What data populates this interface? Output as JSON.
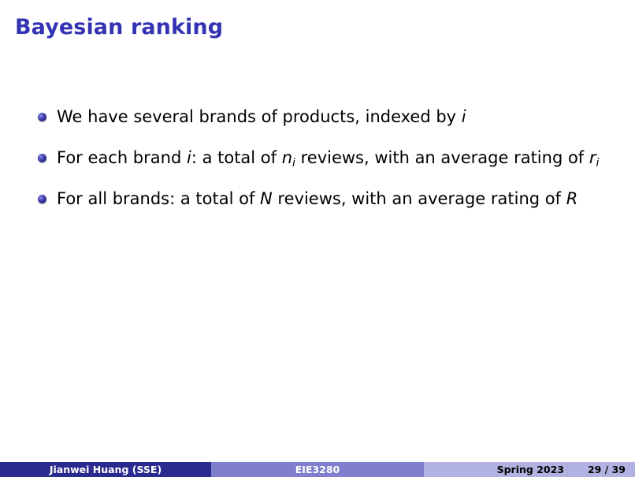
{
  "title": "Bayesian ranking",
  "bullets": {
    "b1": {
      "text": "We have several brands of products, indexed by ",
      "var": "i"
    },
    "b2": {
      "t1": "For each brand ",
      "v1": "i",
      "t2": ": a total of ",
      "v2": "n",
      "v2_sub": "i",
      "t3": " reviews, with an average rating of ",
      "v3": "r",
      "v3_sub": "i"
    },
    "b3": {
      "t1": "For all brands: a total of ",
      "v1": "N",
      "t2": " reviews, with an average rating of ",
      "v2": "R"
    }
  },
  "footer": {
    "author": "Jianwei Huang (SSE)",
    "course": "EIE3280",
    "date": "Spring 2023",
    "page": "29 / 39"
  },
  "colors": {
    "title": "#3333b3",
    "footer_left": "#2b2b8f",
    "footer_center": "#7f7fce",
    "footer_right": "#b2b2e2"
  }
}
